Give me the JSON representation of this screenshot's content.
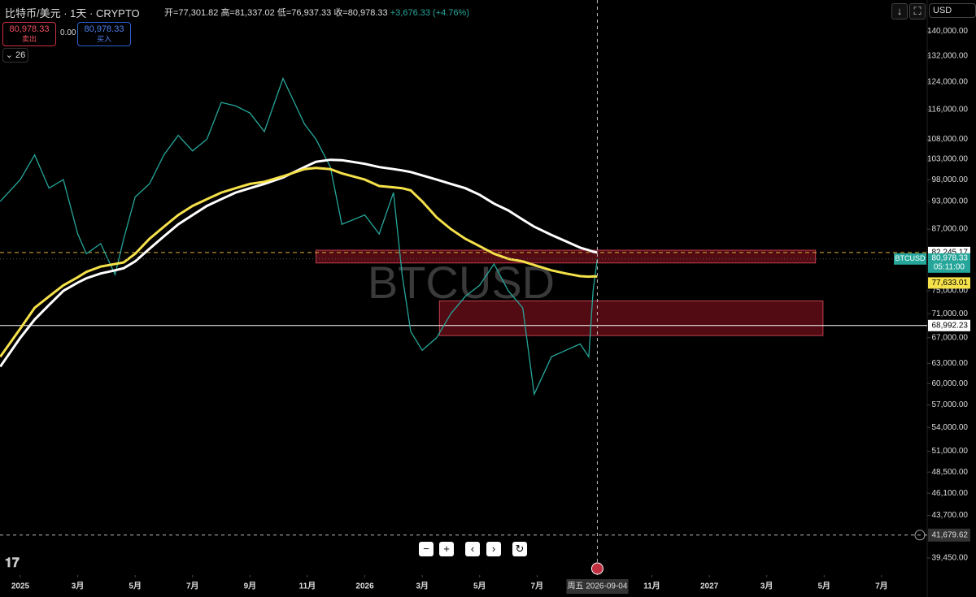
{
  "header": {
    "symbol": "比特币/美元 · 1天 · CRYPTO",
    "open": "开=77,301.82",
    "high": "高=81,337.02",
    "low": "低=76,937.33",
    "close": "收=80,978.33",
    "change": "+3,676.33 (+4.76%)",
    "sell_price": "80,978.33",
    "sell_label": "卖出",
    "spread": "0.00",
    "buy_price": "80,978.33",
    "buy_label": "买入",
    "indicators": "26",
    "currency": "USD"
  },
  "chart_data": {
    "type": "line",
    "watermark": "BTCUSD",
    "log_scale": true,
    "x": [
      -0.7,
      0,
      0.5,
      1,
      1.5,
      2,
      2.3,
      2.8,
      3.3,
      3.6,
      4,
      4.5,
      5,
      5.5,
      6,
      6.5,
      7,
      7.5,
      8,
      8.5,
      9.15,
      9.9,
      10.3,
      10.8,
      11.2,
      12,
      12.5,
      13,
      13.3,
      13.6,
      14,
      14.5,
      15,
      15.5,
      16,
      16.5,
      17,
      17.5,
      17.9,
      18.5,
      19,
      19.5,
      19.8,
      19.95,
      20.1
    ],
    "series": [
      {
        "color": "#26a69a",
        "values": [
          93000,
          98000,
          104000,
          96000,
          98000,
          86000,
          82000,
          84000,
          78000,
          85000,
          94000,
          97000,
          104000,
          109000,
          105000,
          108000,
          118000,
          117000,
          115000,
          110000,
          125000,
          112000,
          108000,
          101000,
          88000,
          90000,
          86000,
          95000,
          78000,
          68000,
          65000,
          67000,
          71000,
          74000,
          76000,
          80000,
          75000,
          72000,
          58500,
          64000,
          65000,
          66000,
          64000,
          75000,
          80978.33
        ]
      },
      {
        "color": "#ffffff",
        "values": [
          62500,
          67000,
          70000,
          72500,
          75000,
          76500,
          77300,
          78200,
          78800,
          79200,
          80500,
          83000,
          85500,
          88000,
          90000,
          92000,
          93500,
          95000,
          96000,
          97000,
          98500,
          101000,
          102300,
          102800,
          102700,
          101800,
          101000,
          100500,
          100200,
          99800,
          99000,
          98000,
          97000,
          96000,
          94500,
          92500,
          91000,
          89000,
          87500,
          85800,
          84500,
          83200,
          82700,
          82400,
          82245.17
        ]
      },
      {
        "color": "#f5e14a",
        "values": [
          64000,
          68500,
          72000,
          74000,
          76000,
          77500,
          78500,
          79500,
          80000,
          80300,
          82000,
          85000,
          87500,
          90000,
          92000,
          93500,
          95000,
          96000,
          97000,
          97500,
          98800,
          100500,
          100800,
          100500,
          99500,
          98000,
          96500,
          96200,
          96000,
          95500,
          93000,
          89500,
          87000,
          85000,
          83500,
          82000,
          81000,
          80500,
          79800,
          78800,
          78200,
          77700,
          77600,
          77650,
          77633.01
        ]
      }
    ],
    "xlim": [
      -0.708,
      31.59
    ],
    "xticks": [
      {
        "value": 0,
        "label": "2025"
      },
      {
        "value": 2,
        "label": "3月"
      },
      {
        "value": 4,
        "label": "5月"
      },
      {
        "value": 6,
        "label": "7月"
      },
      {
        "value": 8,
        "label": "9月"
      },
      {
        "value": 10,
        "label": "11月"
      },
      {
        "value": 12,
        "label": "2026"
      },
      {
        "value": 14,
        "label": "3月"
      },
      {
        "value": 16,
        "label": "5月"
      },
      {
        "value": 18,
        "label": "7月"
      },
      {
        "value": 22,
        "label": "11月"
      },
      {
        "value": 24,
        "label": "2027"
      },
      {
        "value": 26,
        "label": "3月"
      },
      {
        "value": 28,
        "label": "5月"
      },
      {
        "value": 30,
        "label": "7月"
      }
    ],
    "ylim": [
      37860,
      150950
    ],
    "yticks": [
      {
        "value": 140000,
        "label": "140,000.00"
      },
      {
        "value": 132000,
        "label": "132,000.00"
      },
      {
        "value": 124000,
        "label": "124,000.00"
      },
      {
        "value": 116000,
        "label": "116,000.00"
      },
      {
        "value": 108000,
        "label": "108,000.00"
      },
      {
        "value": 103000,
        "label": "103,000.00"
      },
      {
        "value": 98000,
        "label": "98,000.00"
      },
      {
        "value": 93000,
        "label": "93,000.00"
      },
      {
        "value": 87000,
        "label": "87,000.00"
      },
      {
        "value": 75000,
        "label": "75,000.00"
      },
      {
        "value": 71000,
        "label": "71,000.00"
      },
      {
        "value": 67000,
        "label": "67,000.00"
      },
      {
        "value": 63000,
        "label": "63,000.00"
      },
      {
        "value": 60000,
        "label": "60,000.00"
      },
      {
        "value": 57000,
        "label": "57,000.00"
      },
      {
        "value": 54000,
        "label": "54,000.00"
      },
      {
        "value": 51000,
        "label": "51,000.00"
      },
      {
        "value": 48500,
        "label": "48,500.00"
      },
      {
        "value": 46100,
        "label": "46,100.00"
      },
      {
        "value": 43700,
        "label": "43,700.00"
      },
      {
        "value": 39450,
        "label": "39,450.00"
      }
    ],
    "zones": [
      {
        "x": [
          10.3,
          27.7
        ],
        "y": [
          80200,
          82700
        ]
      },
      {
        "x": [
          14.6,
          27.96
        ],
        "y": [
          67350,
          73200
        ]
      }
    ],
    "levels": [
      {
        "value": 82245.17,
        "label": "82,245.17",
        "color": "#e0b030"
      },
      {
        "value": 68992.23,
        "label": "68,992.23",
        "color": "#ffffff"
      }
    ],
    "ma_label": {
      "value": 77633.01,
      "label": "77,633.01",
      "color": "#f5e14a"
    },
    "last_price": {
      "value": 80978.33,
      "label": "80,978.33",
      "symbol": "BTCUSD",
      "countdown": "05:11:00",
      "color": "#26a69a"
    },
    "crosshair": {
      "x": {
        "value": 20.1,
        "label": "周五 2026-09-04"
      },
      "y": {
        "value": 41679.62,
        "label": "41,679.62"
      }
    }
  }
}
